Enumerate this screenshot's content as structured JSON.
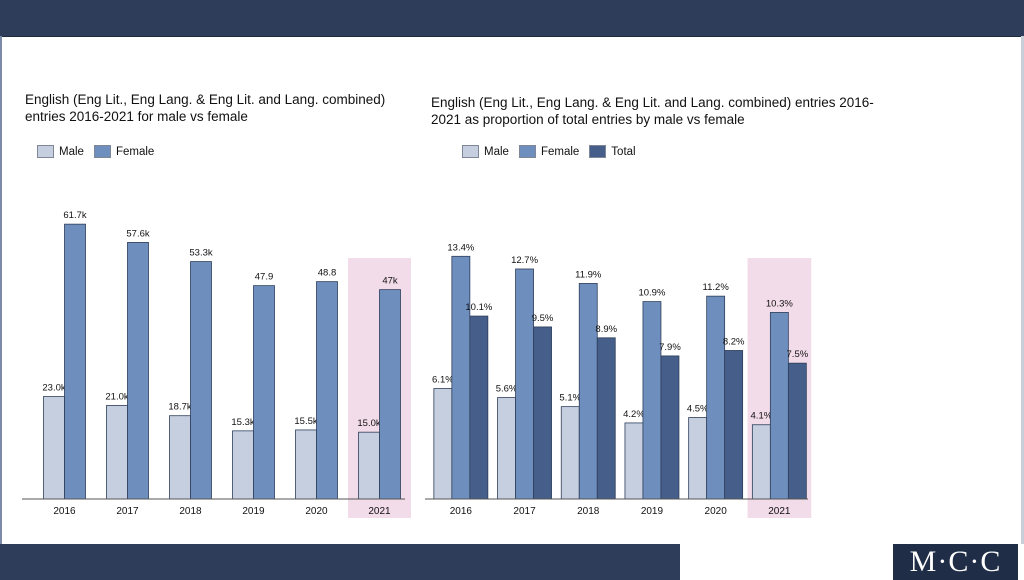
{
  "colors": {
    "male": "#c5cfe0",
    "female": "#6e8fbe",
    "total": "#455e8a",
    "highlight": "#f3dce9",
    "bar_outline": "#2e3e5a"
  },
  "logo": {
    "text": "M·C·C"
  },
  "chart_data": [
    {
      "type": "bar",
      "title": "English (Eng Lit., Eng Lang. & Eng Lit. and Lang. combined) entries 2016-2021 for male vs female",
      "categories": [
        "2016",
        "2017",
        "2018",
        "2019",
        "2020",
        "2021"
      ],
      "series": [
        {
          "name": "Male",
          "values": [
            23.0,
            21.0,
            18.7,
            15.3,
            15.5,
            15.0
          ],
          "labels": [
            "23.0k",
            "21.0k",
            "18.7k",
            "15.3k",
            "15.5k",
            "15.0k"
          ]
        },
        {
          "name": "Female",
          "values": [
            61.7,
            57.6,
            53.3,
            47.9,
            48.8,
            47.0
          ],
          "labels": [
            "61.7k",
            "57.6k",
            "53.3k",
            "47.9",
            "48.8",
            "47k"
          ]
        }
      ],
      "highlight_category": "2021",
      "ylim": [
        0,
        66
      ],
      "legend": "top-left",
      "grid": false,
      "xlabel": "",
      "ylabel": ""
    },
    {
      "type": "bar",
      "title": "English (Eng Lit., Eng Lang. & Eng Lit. and Lang. combined) entries 2016-2021 as proportion of total entries by male vs female",
      "categories": [
        "2016",
        "2017",
        "2018",
        "2019",
        "2020",
        "2021"
      ],
      "series": [
        {
          "name": "Male",
          "values": [
            6.1,
            5.6,
            5.1,
            4.2,
            4.5,
            4.1
          ],
          "labels": [
            "6.1%",
            "5.6%",
            "5.1%",
            "4.2%",
            "4.5%",
            "4.1%"
          ]
        },
        {
          "name": "Female",
          "values": [
            13.4,
            12.7,
            11.9,
            10.9,
            11.2,
            10.3
          ],
          "labels": [
            "13.4%",
            "12.7%",
            "11.9%",
            "10.9%",
            "11.2%",
            "10.3%"
          ]
        },
        {
          "name": "Total",
          "values": [
            10.1,
            9.5,
            8.9,
            7.9,
            8.2,
            7.5
          ],
          "labels": [
            "10.1%",
            "9.5%",
            "8.9%",
            "7.9%",
            "8.2%",
            "7.5%"
          ]
        }
      ],
      "highlight_category": "2021",
      "ylim": [
        0,
        14.3
      ],
      "legend": "top-left",
      "grid": false,
      "xlabel": "",
      "ylabel": ""
    }
  ]
}
